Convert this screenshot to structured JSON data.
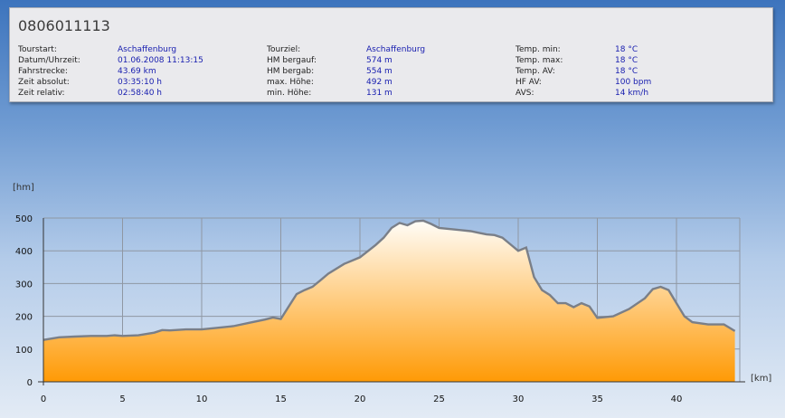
{
  "ride_id": "0806011113",
  "stats": {
    "col1": [
      {
        "label": "Tourstart:",
        "value": "Aschaffenburg"
      },
      {
        "label": "Datum/Uhrzeit:",
        "value": "01.06.2008 11:13:15"
      },
      {
        "label": "Fahrstrecke:",
        "value": "43.69 km"
      },
      {
        "label": "Zeit absolut:",
        "value": "03:35:10 h"
      },
      {
        "label": "Zeit relativ:",
        "value": "02:58:40 h"
      }
    ],
    "col2": [
      {
        "label": "Tourziel:",
        "value": "Aschaffenburg"
      },
      {
        "label": "HM bergauf:",
        "value": "574 m"
      },
      {
        "label": "HM bergab:",
        "value": "554 m"
      },
      {
        "label": "max. Höhe:",
        "value": "492 m"
      },
      {
        "label": "min. Höhe:",
        "value": "131 m"
      }
    ],
    "col3": [
      {
        "label": "Temp. min:",
        "value": "18 °C"
      },
      {
        "label": "Temp. max:",
        "value": "18 °C"
      },
      {
        "label": "Temp. AV:",
        "value": "18 °C"
      },
      {
        "label": "HF AV:",
        "value": "100 bpm"
      },
      {
        "label": "AVS:",
        "value": "14 km/h"
      }
    ]
  },
  "colors": {
    "fill_top": "#fffdf8",
    "fill_bottom": "#ff9a05",
    "line": "#7a7f88",
    "grid": "#8f97a3"
  },
  "chart_data": {
    "type": "area",
    "y_unit": "[hm]",
    "x_unit": "[km]",
    "xlim": [
      0,
      44
    ],
    "ylim": [
      0,
      500
    ],
    "x_ticks": [
      0,
      5,
      10,
      15,
      20,
      25,
      30,
      35,
      40
    ],
    "y_ticks": [
      0,
      100,
      200,
      300,
      400,
      500
    ],
    "grid": true,
    "x": [
      0,
      1,
      2,
      3,
      4,
      4.5,
      5,
      6,
      7,
      7.5,
      8,
      9,
      10,
      11,
      12,
      13,
      14,
      14.5,
      15,
      15.5,
      16,
      16.5,
      17,
      17.5,
      18,
      19,
      20,
      21,
      21.5,
      22,
      22.5,
      23,
      23.5,
      24,
      24.5,
      25,
      26,
      27,
      27.5,
      28,
      28.5,
      29,
      29.5,
      30,
      30.5,
      31,
      31.5,
      32,
      32.5,
      33,
      33.5,
      34,
      34.5,
      35,
      36,
      37,
      38,
      38.5,
      39,
      39.5,
      40,
      40.5,
      41,
      42,
      43,
      43.69
    ],
    "y": [
      128,
      136,
      138,
      140,
      140,
      142,
      140,
      142,
      150,
      158,
      157,
      160,
      160,
      165,
      170,
      180,
      190,
      196,
      192,
      230,
      268,
      280,
      290,
      310,
      330,
      360,
      380,
      418,
      440,
      470,
      485,
      478,
      490,
      492,
      482,
      470,
      465,
      460,
      455,
      450,
      448,
      440,
      420,
      400,
      410,
      320,
      280,
      265,
      240,
      240,
      228,
      240,
      230,
      195,
      200,
      222,
      255,
      283,
      290,
      280,
      240,
      200,
      182,
      175,
      175,
      155
    ]
  }
}
